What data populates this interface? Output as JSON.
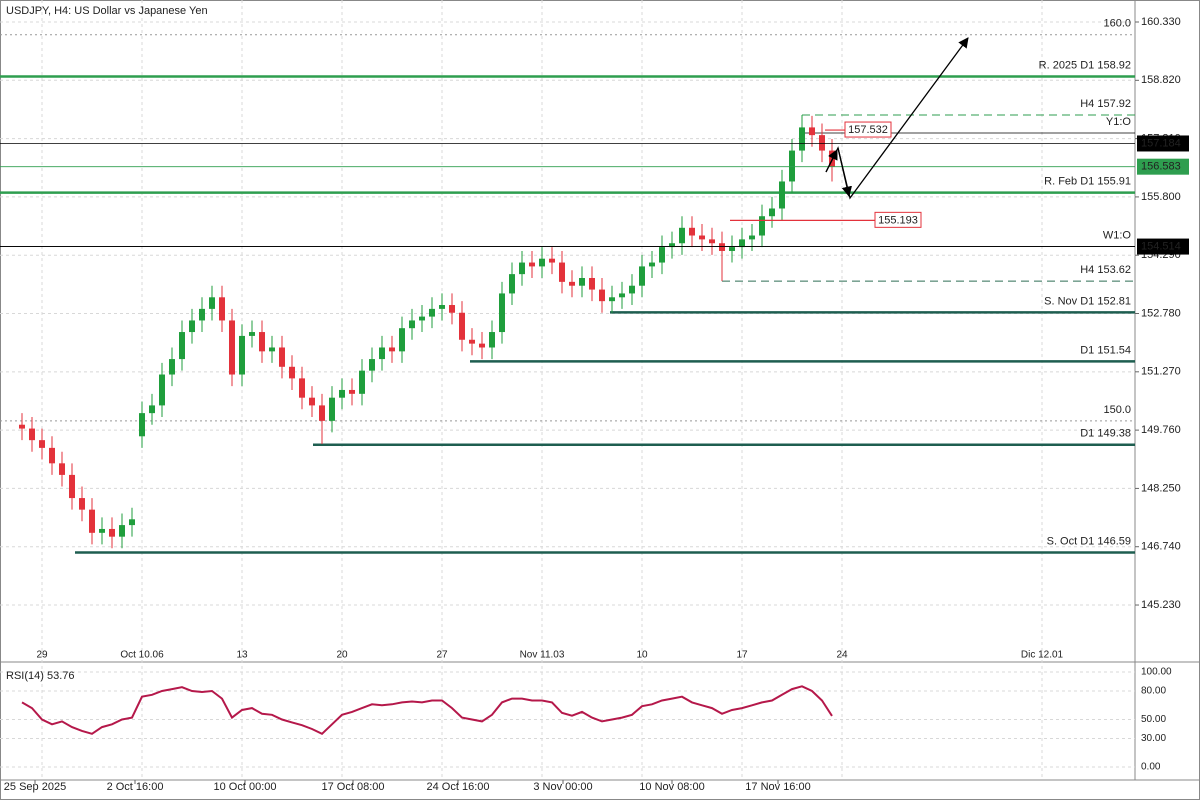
{
  "chart_data": {
    "type": "candlestick",
    "title": "USDJPY, H4:  US Dollar vs Japanese Yen",
    "up_color": "#1f9e3c",
    "down_color": "#e3323b",
    "open": [
      149.9,
      149.8,
      149.5,
      149.3,
      148.9,
      148.6,
      148.0,
      147.7,
      147.1,
      147.2,
      147.0,
      147.3,
      149.6,
      150.2,
      150.4,
      151.2,
      151.6,
      152.3,
      152.6,
      152.9,
      153.2,
      152.6,
      151.2,
      152.2,
      152.3,
      151.8,
      151.9,
      151.4,
      151.1,
      150.6,
      150.4,
      150.0,
      150.6,
      150.8,
      150.7,
      151.3,
      151.6,
      151.9,
      151.8,
      152.4,
      152.6,
      152.7,
      152.9,
      153.0,
      152.8,
      152.1,
      152.0,
      151.9,
      152.3,
      153.3,
      153.8,
      154.1,
      154.0,
      154.2,
      154.1,
      153.6,
      153.5,
      153.7,
      153.4,
      153.1,
      153.2,
      153.3,
      153.5,
      154.0,
      154.1,
      154.5,
      154.6,
      155.0,
      154.8,
      154.7,
      154.6,
      154.4,
      154.5,
      154.7,
      154.8,
      155.3,
      155.5,
      156.2,
      157.0,
      157.6,
      157.4,
      157.0
    ],
    "high": [
      150.2,
      150.1,
      149.8,
      149.6,
      149.2,
      148.9,
      148.3,
      148.0,
      147.5,
      147.5,
      147.6,
      147.75,
      150.5,
      150.7,
      151.5,
      151.9,
      152.6,
      152.9,
      153.2,
      153.5,
      153.5,
      152.9,
      152.5,
      152.6,
      152.6,
      152.2,
      152.2,
      151.7,
      151.4,
      150.9,
      150.7,
      150.9,
      151.1,
      151.1,
      151.6,
      151.9,
      152.2,
      152.2,
      152.7,
      152.9,
      153.0,
      153.2,
      153.3,
      153.3,
      153.1,
      152.4,
      152.3,
      152.6,
      153.6,
      154.1,
      154.4,
      154.4,
      154.5,
      154.5,
      154.4,
      153.9,
      154.0,
      154.0,
      153.7,
      153.5,
      153.6,
      153.8,
      154.3,
      154.4,
      154.8,
      154.9,
      155.3,
      155.3,
      155.1,
      155.0,
      154.9,
      154.8,
      155.0,
      155.1,
      155.6,
      155.8,
      156.5,
      157.3,
      157.92,
      157.9,
      157.7,
      157.3
    ],
    "low": [
      149.5,
      149.2,
      149.0,
      148.6,
      148.3,
      147.7,
      147.4,
      146.8,
      146.8,
      146.7,
      146.7,
      147.0,
      149.3,
      149.9,
      150.1,
      150.9,
      151.3,
      152.0,
      152.3,
      152.6,
      152.3,
      150.9,
      150.9,
      151.9,
      151.5,
      151.5,
      151.1,
      150.8,
      150.3,
      150.1,
      149.4,
      149.7,
      150.3,
      150.4,
      150.4,
      151.0,
      151.3,
      151.5,
      151.5,
      152.1,
      152.3,
      152.4,
      152.6,
      152.5,
      151.8,
      151.7,
      151.6,
      151.6,
      152.0,
      153.0,
      153.5,
      153.7,
      153.7,
      153.8,
      153.3,
      153.2,
      153.2,
      153.1,
      152.8,
      152.8,
      152.9,
      153.0,
      153.2,
      153.7,
      153.8,
      154.2,
      154.3,
      154.5,
      154.4,
      154.3,
      153.62,
      154.1,
      154.2,
      154.4,
      154.5,
      155.0,
      155.2,
      155.9,
      156.7,
      157.1,
      156.7,
      156.2
    ],
    "close": [
      149.8,
      149.5,
      149.3,
      148.9,
      148.6,
      148.0,
      147.7,
      147.1,
      147.2,
      147.0,
      147.3,
      147.45,
      150.2,
      150.4,
      151.2,
      151.6,
      152.3,
      152.6,
      152.9,
      153.2,
      152.6,
      151.2,
      152.2,
      152.3,
      151.8,
      151.9,
      151.4,
      151.1,
      150.6,
      150.4,
      150.0,
      150.6,
      150.8,
      150.7,
      151.3,
      151.6,
      151.9,
      151.8,
      152.4,
      152.6,
      152.7,
      152.9,
      153.0,
      152.8,
      152.1,
      152.0,
      151.9,
      152.3,
      153.3,
      153.8,
      154.1,
      154.0,
      154.2,
      154.1,
      153.6,
      153.5,
      153.7,
      153.4,
      153.1,
      153.2,
      153.3,
      153.5,
      154.0,
      154.1,
      154.5,
      154.6,
      155.0,
      154.8,
      154.7,
      154.6,
      154.4,
      154.5,
      154.7,
      154.8,
      155.3,
      155.5,
      156.2,
      157.0,
      157.6,
      157.4,
      157.0,
      156.58
    ],
    "xlim": [
      -2.2,
      111.3
    ],
    "xticks": [
      {
        "value": 2,
        "label": "29"
      },
      {
        "value": 12,
        "label": "Oct 10.06"
      },
      {
        "value": 22,
        "label": "13"
      },
      {
        "value": 32,
        "label": "20"
      },
      {
        "value": 42,
        "label": "27"
      },
      {
        "value": 52,
        "label": "Nov 11.03"
      },
      {
        "value": 62,
        "label": "10"
      },
      {
        "value": 72,
        "label": "17"
      },
      {
        "value": 82,
        "label": "24"
      },
      {
        "value": 102,
        "label": "Dic 12.01"
      }
    ],
    "time_labels": [
      {
        "value": 1.3,
        "label": "25 Sep 2025"
      },
      {
        "value": 11.3,
        "label": "2 Oct 16:00"
      },
      {
        "value": 22.3,
        "label": "10 Oct 00:00"
      },
      {
        "value": 33.1,
        "label": "17 Oct 08:00"
      },
      {
        "value": 43.6,
        "label": "24 Oct 16:00"
      },
      {
        "value": 54.1,
        "label": "3 Nov 00:00"
      },
      {
        "value": 65,
        "label": "10 Nov 08:00"
      },
      {
        "value": 75.6,
        "label": "17 Nov 16:00"
      }
    ],
    "ylim": [
      143.806,
      160.9
    ],
    "yticks": [
      {
        "value": 160.33,
        "label": "160.330"
      },
      {
        "value": 158.82,
        "label": "158.820"
      },
      {
        "value": 157.31,
        "label": "157.310"
      },
      {
        "value": 155.8,
        "label": "155.800"
      },
      {
        "value": 154.29,
        "label": "154.290"
      },
      {
        "value": 152.78,
        "label": "152.780"
      },
      {
        "value": 151.27,
        "label": "151.270"
      },
      {
        "value": 149.76,
        "label": "149.760"
      },
      {
        "value": 148.25,
        "label": "148.250"
      },
      {
        "value": 146.74,
        "label": "146.740"
      },
      {
        "value": 145.23,
        "label": "145.230"
      }
    ],
    "grid": true,
    "levels": [
      {
        "label": "160.0",
        "value": 160,
        "color": "#999999",
        "style": "dotted",
        "width": 1
      },
      {
        "label": "R. 2025 D1 158.92",
        "value": 158.92,
        "color": "#2e9e4f",
        "style": "solid",
        "width": 2.5
      },
      {
        "label": "H4 157.92",
        "value": 157.92,
        "color": "#2e9e4f",
        "style": "dashed",
        "width": 1,
        "x_start": 78
      },
      {
        "label": "Y1:O",
        "value": 157.455,
        "color": "#000000",
        "style": "solid",
        "width": 0.8,
        "x_start": 78
      },
      {
        "label": "R. Feb D1 155.91",
        "value": 155.91,
        "color": "#2e9e4f",
        "style": "solid",
        "width": 2.5
      },
      {
        "label": "W1:O",
        "value": 154.514,
        "color": "#000000",
        "style": "solid",
        "width": 0.8
      },
      {
        "label": "H4 153.62",
        "value": 153.62,
        "color": "#2e6e55",
        "style": "dashed",
        "width": 1,
        "x_start": 70
      },
      {
        "label": "S. Nov D1 152.81",
        "value": 152.81,
        "color": "#1e5e50",
        "style": "solid",
        "width": 2.5,
        "x_start": 58.8
      },
      {
        "label": "D1 151.54",
        "value": 151.54,
        "color": "#1e5e50",
        "style": "solid",
        "width": 2.5,
        "x_start": 44.8
      },
      {
        "label": "150.0",
        "value": 150,
        "color": "#999999",
        "style": "dotted",
        "width": 1
      },
      {
        "label": "D1 149.38",
        "value": 149.38,
        "color": "#1e5e50",
        "style": "solid",
        "width": 2.5,
        "x_start": 29.1
      },
      {
        "label": "S. Oct D1 146.59",
        "value": 146.59,
        "color": "#1e5e50",
        "style": "solid",
        "width": 2.5,
        "x_start": 5.3
      }
    ],
    "markers": [
      {
        "label": "157.184",
        "value": 157.184,
        "color": "#000000"
      },
      {
        "label": "156.583",
        "value": 156.583,
        "color": "#2e9e4f"
      },
      {
        "label": "154.514",
        "value": 154.514,
        "color": "#000000"
      }
    ],
    "tags": [
      {
        "label": "157.532",
        "value": 157.532,
        "color": "#e3323b",
        "x_start": 80.3,
        "x_end": 82.3
      },
      {
        "label": "155.193",
        "value": 155.193,
        "color": "#e3323b",
        "x_start": 70.8,
        "x_end": 85.3
      }
    ],
    "rsi": {
      "label": "RSI(14) 53.76",
      "color": "#b5184a",
      "ylim": [
        0,
        100
      ],
      "yticks": [
        {
          "value": 100,
          "label": "100.00"
        },
        {
          "value": 80,
          "label": "80.00"
        },
        {
          "value": 50,
          "label": "50.00"
        },
        {
          "value": 30,
          "label": "30.00"
        },
        {
          "value": 0,
          "label": "0.00"
        }
      ],
      "values": [
        68,
        62,
        50,
        45,
        48,
        42,
        38,
        35,
        42,
        45,
        50,
        52,
        74,
        76,
        80,
        82,
        84,
        80,
        79,
        80,
        72,
        52,
        60,
        62,
        56,
        55,
        50,
        47,
        44,
        40,
        35,
        45,
        55,
        58,
        62,
        66,
        65,
        66,
        68,
        69,
        68,
        70,
        70,
        62,
        52,
        50,
        48,
        55,
        68,
        72,
        72,
        70,
        70,
        68,
        57,
        54,
        58,
        52,
        48,
        50,
        52,
        55,
        64,
        66,
        70,
        72,
        74,
        68,
        65,
        62,
        56,
        60,
        62,
        65,
        68,
        70,
        76,
        82,
        85,
        80,
        70,
        53.76
      ]
    }
  }
}
